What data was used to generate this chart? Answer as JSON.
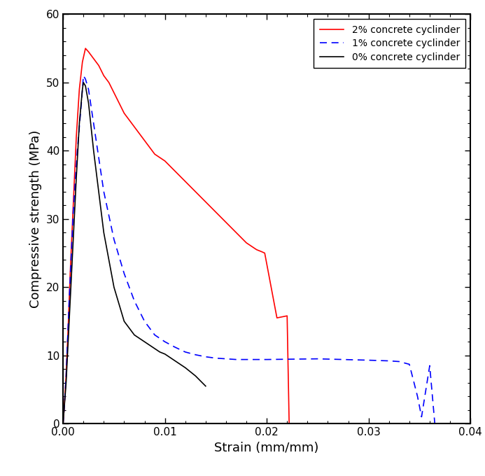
{
  "title": "",
  "xlabel": "Strain (mm/mm)",
  "ylabel": "Compressive strength (MPa)",
  "xlim": [
    0,
    0.04
  ],
  "ylim": [
    0,
    60
  ],
  "xticks": [
    0,
    0.01,
    0.02,
    0.03,
    0.04
  ],
  "yticks": [
    0,
    10,
    20,
    30,
    40,
    50,
    60
  ],
  "legend": [
    {
      "label": "2% concrete cyclinder",
      "color": "#ff0000",
      "linestyle": "solid"
    },
    {
      "label": "1% concrete cyclinder",
      "color": "#0000ff",
      "linestyle": "dashed"
    },
    {
      "label": "0% concrete cyclinder",
      "color": "#000000",
      "linestyle": "solid"
    }
  ],
  "curve_2pct": {
    "x": [
      0.0,
      0.0001,
      0.0003,
      0.0005,
      0.0007,
      0.001,
      0.0013,
      0.0016,
      0.0019,
      0.0022,
      0.0025,
      0.003,
      0.0035,
      0.004,
      0.0045,
      0.005,
      0.0055,
      0.006,
      0.0065,
      0.007,
      0.0075,
      0.008,
      0.0085,
      0.009,
      0.0095,
      0.01,
      0.011,
      0.012,
      0.013,
      0.014,
      0.015,
      0.016,
      0.017,
      0.018,
      0.019,
      0.0195,
      0.0198,
      0.021,
      0.022,
      0.0222
    ],
    "y": [
      0.0,
      2,
      7,
      14,
      22,
      32,
      42,
      49,
      53,
      55,
      54.5,
      53.5,
      52.5,
      51,
      50,
      48.5,
      47,
      45.5,
      44.5,
      43.5,
      42.5,
      41.5,
      40.5,
      39.5,
      39,
      38.5,
      37,
      35.5,
      34,
      32.5,
      31,
      29.5,
      28,
      26.5,
      25.5,
      25.2,
      25.0,
      15.5,
      15.8,
      0
    ]
  },
  "curve_1pct": {
    "x": [
      0.0,
      0.0001,
      0.0003,
      0.0006,
      0.001,
      0.0014,
      0.0018,
      0.002,
      0.0022,
      0.0025,
      0.003,
      0.0035,
      0.004,
      0.005,
      0.006,
      0.007,
      0.008,
      0.009,
      0.01,
      0.011,
      0.012,
      0.013,
      0.014,
      0.015,
      0.016,
      0.017,
      0.018,
      0.019,
      0.0195,
      0.02,
      0.025,
      0.03,
      0.032,
      0.033,
      0.034,
      0.0348,
      0.0352,
      0.036,
      0.0365
    ],
    "y": [
      0.0,
      2,
      7,
      18,
      31,
      40,
      47,
      51,
      50.5,
      49,
      44,
      39,
      34,
      27,
      22,
      18,
      15,
      13,
      12,
      11.2,
      10.5,
      10.1,
      9.8,
      9.6,
      9.5,
      9.4,
      9.4,
      9.4,
      9.4,
      9.4,
      9.5,
      9.3,
      9.2,
      9.1,
      8.7,
      4.0,
      1.0,
      8.5,
      0
    ]
  },
  "curve_0pct": {
    "x": [
      0.0,
      0.0001,
      0.0003,
      0.0006,
      0.001,
      0.0013,
      0.0016,
      0.0019,
      0.002,
      0.0022,
      0.0025,
      0.003,
      0.004,
      0.005,
      0.006,
      0.007,
      0.008,
      0.009,
      0.0095,
      0.01,
      0.011,
      0.012,
      0.013,
      0.014
    ],
    "y": [
      0.0,
      2,
      6,
      15,
      27,
      36,
      44,
      49,
      50,
      49.5,
      47,
      40,
      28,
      20,
      15,
      13,
      12,
      11,
      10.5,
      10.2,
      9.2,
      8.2,
      7.0,
      5.5
    ]
  }
}
